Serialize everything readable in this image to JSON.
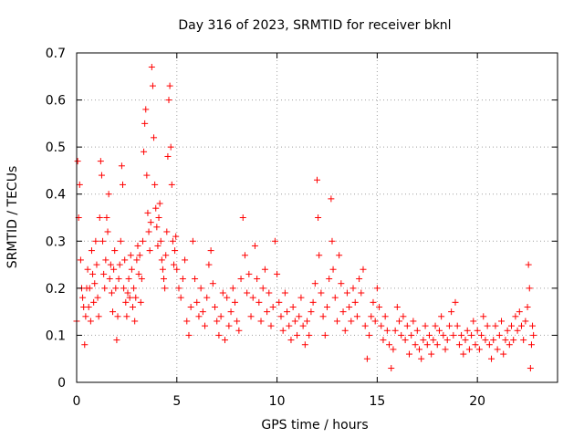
{
  "chart_data": {
    "type": "scatter",
    "title": "Day 316 of 2023, SRMTID for receiver bknl",
    "xlabel": "GPS time / hours",
    "ylabel": "SRMTID / TECUs",
    "xlim": [
      0,
      24
    ],
    "ylim": [
      0,
      0.7
    ],
    "x_ticks": [
      0,
      5,
      10,
      15,
      20
    ],
    "x_tick_labels": [
      "0",
      "5",
      "10",
      "15",
      "20"
    ],
    "y_ticks": [
      0,
      0.1,
      0.2,
      0.3,
      0.4,
      0.5,
      0.6,
      0.7
    ],
    "y_tick_labels": [
      "0",
      "0.1",
      "0.2",
      "0.3",
      "0.4",
      "0.5",
      "0.6",
      "0.7"
    ],
    "grid": true,
    "marker": "plus",
    "color": "#ff0000",
    "series": [
      {
        "name": "SRMTID",
        "points": [
          [
            0.0,
            0.13
          ],
          [
            0.05,
            0.47
          ],
          [
            0.1,
            0.35
          ],
          [
            0.15,
            0.42
          ],
          [
            0.2,
            0.26
          ],
          [
            0.25,
            0.2
          ],
          [
            0.3,
            0.18
          ],
          [
            0.35,
            0.16
          ],
          [
            0.4,
            0.08
          ],
          [
            0.45,
            0.14
          ],
          [
            0.5,
            0.2
          ],
          [
            0.55,
            0.24
          ],
          [
            0.6,
            0.16
          ],
          [
            0.65,
            0.2
          ],
          [
            0.7,
            0.13
          ],
          [
            0.75,
            0.28
          ],
          [
            0.8,
            0.23
          ],
          [
            0.85,
            0.17
          ],
          [
            0.9,
            0.21
          ],
          [
            0.95,
            0.3
          ],
          [
            1.0,
            0.25
          ],
          [
            1.05,
            0.18
          ],
          [
            1.1,
            0.14
          ],
          [
            1.15,
            0.35
          ],
          [
            1.2,
            0.47
          ],
          [
            1.25,
            0.44
          ],
          [
            1.3,
            0.3
          ],
          [
            1.35,
            0.23
          ],
          [
            1.4,
            0.2
          ],
          [
            1.45,
            0.26
          ],
          [
            1.5,
            0.35
          ],
          [
            1.55,
            0.32
          ],
          [
            1.6,
            0.4
          ],
          [
            1.65,
            0.22
          ],
          [
            1.7,
            0.25
          ],
          [
            1.75,
            0.19
          ],
          [
            1.8,
            0.15
          ],
          [
            1.85,
            0.24
          ],
          [
            1.9,
            0.28
          ],
          [
            1.95,
            0.2
          ],
          [
            2.0,
            0.09
          ],
          [
            2.05,
            0.14
          ],
          [
            2.1,
            0.22
          ],
          [
            2.15,
            0.25
          ],
          [
            2.2,
            0.3
          ],
          [
            2.25,
            0.46
          ],
          [
            2.3,
            0.42
          ],
          [
            2.35,
            0.2
          ],
          [
            2.4,
            0.26
          ],
          [
            2.45,
            0.17
          ],
          [
            2.5,
            0.14
          ],
          [
            2.55,
            0.19
          ],
          [
            2.6,
            0.22
          ],
          [
            2.65,
            0.18
          ],
          [
            2.7,
            0.27
          ],
          [
            2.75,
            0.24
          ],
          [
            2.8,
            0.16
          ],
          [
            2.85,
            0.2
          ],
          [
            2.9,
            0.13
          ],
          [
            2.95,
            0.18
          ],
          [
            3.0,
            0.26
          ],
          [
            3.05,
            0.29
          ],
          [
            3.1,
            0.23
          ],
          [
            3.15,
            0.27
          ],
          [
            3.2,
            0.17
          ],
          [
            3.25,
            0.22
          ],
          [
            3.3,
            0.3
          ],
          [
            3.35,
            0.49
          ],
          [
            3.4,
            0.55
          ],
          [
            3.45,
            0.58
          ],
          [
            3.5,
            0.44
          ],
          [
            3.55,
            0.36
          ],
          [
            3.6,
            0.32
          ],
          [
            3.65,
            0.28
          ],
          [
            3.7,
            0.34
          ],
          [
            3.75,
            0.67
          ],
          [
            3.8,
            0.63
          ],
          [
            3.85,
            0.52
          ],
          [
            3.9,
            0.42
          ],
          [
            3.95,
            0.37
          ],
          [
            4.0,
            0.33
          ],
          [
            4.05,
            0.29
          ],
          [
            4.1,
            0.35
          ],
          [
            4.15,
            0.38
          ],
          [
            4.2,
            0.3
          ],
          [
            4.25,
            0.26
          ],
          [
            4.3,
            0.24
          ],
          [
            4.35,
            0.22
          ],
          [
            4.4,
            0.2
          ],
          [
            4.45,
            0.27
          ],
          [
            4.5,
            0.32
          ],
          [
            4.55,
            0.48
          ],
          [
            4.6,
            0.6
          ],
          [
            4.65,
            0.63
          ],
          [
            4.7,
            0.5
          ],
          [
            4.75,
            0.42
          ],
          [
            4.8,
            0.3
          ],
          [
            4.85,
            0.25
          ],
          [
            4.9,
            0.28
          ],
          [
            4.95,
            0.31
          ],
          [
            5.0,
            0.24
          ],
          [
            5.1,
            0.2
          ],
          [
            5.2,
            0.18
          ],
          [
            5.3,
            0.22
          ],
          [
            5.4,
            0.26
          ],
          [
            5.5,
            0.13
          ],
          [
            5.6,
            0.1
          ],
          [
            5.7,
            0.16
          ],
          [
            5.8,
            0.3
          ],
          [
            5.9,
            0.22
          ],
          [
            6.0,
            0.17
          ],
          [
            6.1,
            0.14
          ],
          [
            6.2,
            0.2
          ],
          [
            6.3,
            0.15
          ],
          [
            6.4,
            0.12
          ],
          [
            6.5,
            0.18
          ],
          [
            6.6,
            0.25
          ],
          [
            6.7,
            0.28
          ],
          [
            6.8,
            0.21
          ],
          [
            6.9,
            0.16
          ],
          [
            7.0,
            0.13
          ],
          [
            7.1,
            0.1
          ],
          [
            7.2,
            0.14
          ],
          [
            7.3,
            0.19
          ],
          [
            7.4,
            0.09
          ],
          [
            7.5,
            0.18
          ],
          [
            7.6,
            0.12
          ],
          [
            7.7,
            0.15
          ],
          [
            7.8,
            0.2
          ],
          [
            7.9,
            0.17
          ],
          [
            8.0,
            0.13
          ],
          [
            8.1,
            0.11
          ],
          [
            8.2,
            0.22
          ],
          [
            8.3,
            0.35
          ],
          [
            8.4,
            0.27
          ],
          [
            8.5,
            0.19
          ],
          [
            8.6,
            0.23
          ],
          [
            8.7,
            0.14
          ],
          [
            8.8,
            0.18
          ],
          [
            8.9,
            0.29
          ],
          [
            9.0,
            0.22
          ],
          [
            9.1,
            0.17
          ],
          [
            9.2,
            0.13
          ],
          [
            9.3,
            0.2
          ],
          [
            9.4,
            0.24
          ],
          [
            9.5,
            0.15
          ],
          [
            9.6,
            0.19
          ],
          [
            9.7,
            0.12
          ],
          [
            9.8,
            0.16
          ],
          [
            9.9,
            0.3
          ],
          [
            10.0,
            0.23
          ],
          [
            10.1,
            0.17
          ],
          [
            10.2,
            0.14
          ],
          [
            10.3,
            0.11
          ],
          [
            10.4,
            0.19
          ],
          [
            10.5,
            0.15
          ],
          [
            10.6,
            0.12
          ],
          [
            10.7,
            0.09
          ],
          [
            10.8,
            0.16
          ],
          [
            10.9,
            0.13
          ],
          [
            11.0,
            0.1
          ],
          [
            11.1,
            0.14
          ],
          [
            11.2,
            0.18
          ],
          [
            11.3,
            0.12
          ],
          [
            11.4,
            0.08
          ],
          [
            11.5,
            0.13
          ],
          [
            11.6,
            0.1
          ],
          [
            11.7,
            0.15
          ],
          [
            11.8,
            0.17
          ],
          [
            11.9,
            0.21
          ],
          [
            12.0,
            0.43
          ],
          [
            12.05,
            0.35
          ],
          [
            12.1,
            0.27
          ],
          [
            12.2,
            0.19
          ],
          [
            12.3,
            0.14
          ],
          [
            12.4,
            0.1
          ],
          [
            12.5,
            0.16
          ],
          [
            12.6,
            0.22
          ],
          [
            12.7,
            0.39
          ],
          [
            12.75,
            0.3
          ],
          [
            12.8,
            0.24
          ],
          [
            12.9,
            0.18
          ],
          [
            13.0,
            0.13
          ],
          [
            13.1,
            0.27
          ],
          [
            13.2,
            0.21
          ],
          [
            13.3,
            0.15
          ],
          [
            13.4,
            0.11
          ],
          [
            13.5,
            0.19
          ],
          [
            13.6,
            0.16
          ],
          [
            13.7,
            0.13
          ],
          [
            13.8,
            0.2
          ],
          [
            13.9,
            0.17
          ],
          [
            14.0,
            0.14
          ],
          [
            14.1,
            0.22
          ],
          [
            14.2,
            0.19
          ],
          [
            14.3,
            0.24
          ],
          [
            14.4,
            0.12
          ],
          [
            14.5,
            0.05
          ],
          [
            14.6,
            0.1
          ],
          [
            14.7,
            0.14
          ],
          [
            14.8,
            0.17
          ],
          [
            14.9,
            0.13
          ],
          [
            15.0,
            0.2
          ],
          [
            15.1,
            0.16
          ],
          [
            15.2,
            0.12
          ],
          [
            15.3,
            0.09
          ],
          [
            15.4,
            0.14
          ],
          [
            15.5,
            0.11
          ],
          [
            15.6,
            0.08
          ],
          [
            15.7,
            0.03
          ],
          [
            15.8,
            0.07
          ],
          [
            15.9,
            0.11
          ],
          [
            16.0,
            0.16
          ],
          [
            16.1,
            0.13
          ],
          [
            16.2,
            0.1
          ],
          [
            16.3,
            0.14
          ],
          [
            16.4,
            0.09
          ],
          [
            16.5,
            0.12
          ],
          [
            16.6,
            0.06
          ],
          [
            16.7,
            0.1
          ],
          [
            16.8,
            0.13
          ],
          [
            16.9,
            0.08
          ],
          [
            17.0,
            0.11
          ],
          [
            17.1,
            0.07
          ],
          [
            17.2,
            0.05
          ],
          [
            17.3,
            0.09
          ],
          [
            17.4,
            0.12
          ],
          [
            17.5,
            0.08
          ],
          [
            17.6,
            0.1
          ],
          [
            17.7,
            0.06
          ],
          [
            17.8,
            0.09
          ],
          [
            17.9,
            0.12
          ],
          [
            18.0,
            0.08
          ],
          [
            18.1,
            0.11
          ],
          [
            18.2,
            0.14
          ],
          [
            18.3,
            0.1
          ],
          [
            18.4,
            0.07
          ],
          [
            18.5,
            0.09
          ],
          [
            18.6,
            0.12
          ],
          [
            18.7,
            0.15
          ],
          [
            18.8,
            0.1
          ],
          [
            18.9,
            0.17
          ],
          [
            19.0,
            0.12
          ],
          [
            19.1,
            0.08
          ],
          [
            19.2,
            0.1
          ],
          [
            19.3,
            0.06
          ],
          [
            19.4,
            0.09
          ],
          [
            19.5,
            0.11
          ],
          [
            19.6,
            0.07
          ],
          [
            19.7,
            0.1
          ],
          [
            19.8,
            0.13
          ],
          [
            19.9,
            0.08
          ],
          [
            20.0,
            0.11
          ],
          [
            20.1,
            0.07
          ],
          [
            20.2,
            0.1
          ],
          [
            20.3,
            0.14
          ],
          [
            20.4,
            0.09
          ],
          [
            20.5,
            0.12
          ],
          [
            20.6,
            0.08
          ],
          [
            20.7,
            0.05
          ],
          [
            20.8,
            0.09
          ],
          [
            20.9,
            0.12
          ],
          [
            21.0,
            0.07
          ],
          [
            21.1,
            0.1
          ],
          [
            21.2,
            0.13
          ],
          [
            21.3,
            0.06
          ],
          [
            21.4,
            0.09
          ],
          [
            21.5,
            0.11
          ],
          [
            21.6,
            0.08
          ],
          [
            21.7,
            0.12
          ],
          [
            21.8,
            0.09
          ],
          [
            21.9,
            0.14
          ],
          [
            22.0,
            0.11
          ],
          [
            22.1,
            0.15
          ],
          [
            22.2,
            0.12
          ],
          [
            22.3,
            0.09
          ],
          [
            22.4,
            0.13
          ],
          [
            22.5,
            0.16
          ],
          [
            22.55,
            0.25
          ],
          [
            22.6,
            0.2
          ],
          [
            22.65,
            0.03
          ],
          [
            22.7,
            0.08
          ],
          [
            22.75,
            0.12
          ],
          [
            22.8,
            0.1
          ]
        ]
      }
    ]
  }
}
